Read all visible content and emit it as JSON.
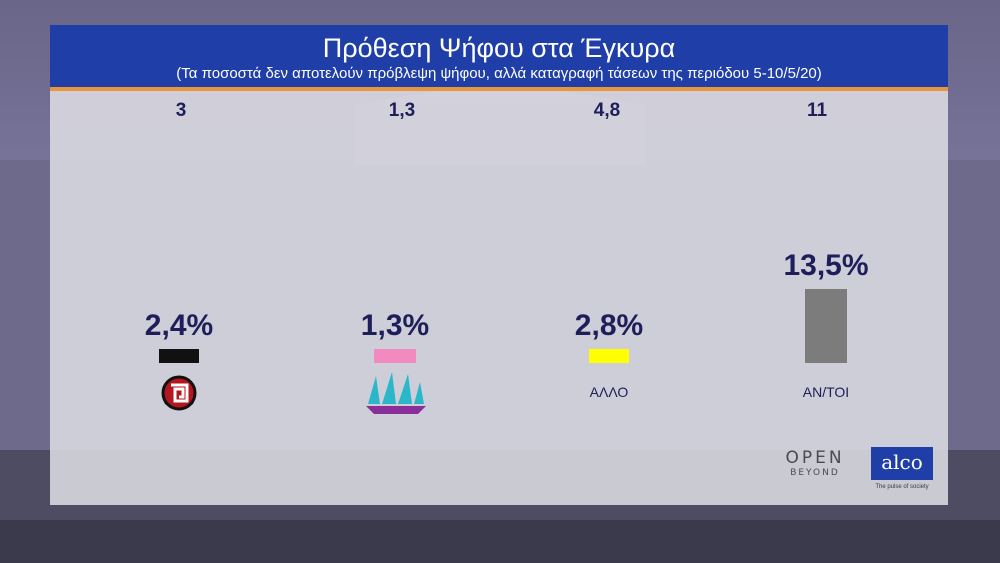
{
  "header": {
    "title": "Πρόθεση Ψήφου στα Έγκυρα",
    "subtitle": "(Τα ποσοστά δεν αποτελούν πρόβλεψη ψήφου, αλλά καταγραφή τάσεων της περιόδου 5-10/5/20)"
  },
  "colors": {
    "header_bg": "#1f3ea8",
    "header_underline": "#e8963a",
    "text_dark": "#1e1e5a"
  },
  "chart_data": {
    "type": "bar",
    "categories": [
      "",
      "",
      "ΑΛΛΟ",
      "ΑΝ/ΤΟΙ"
    ],
    "category_icons": [
      "meander-party-logo-icon",
      "ships-party-logo-icon",
      "",
      ""
    ],
    "series": [
      {
        "values": [
          2.4,
          1.3,
          2.8,
          13.5
        ],
        "labels": [
          "2,4%",
          "1,3%",
          "2,8%",
          "13,5%"
        ],
        "colors": [
          "#111111",
          "#f28ac0",
          "#ffff00",
          "#7c7c7c"
        ]
      }
    ],
    "top_numbers": [
      "3",
      "1,3",
      "4,8",
      "11"
    ],
    "xlabel": "",
    "ylabel": ""
  },
  "branding": {
    "open_line1": "OPEN",
    "open_line2": "BEYOND",
    "alco_name": "alco",
    "alco_tagline": "The pulse of society"
  }
}
